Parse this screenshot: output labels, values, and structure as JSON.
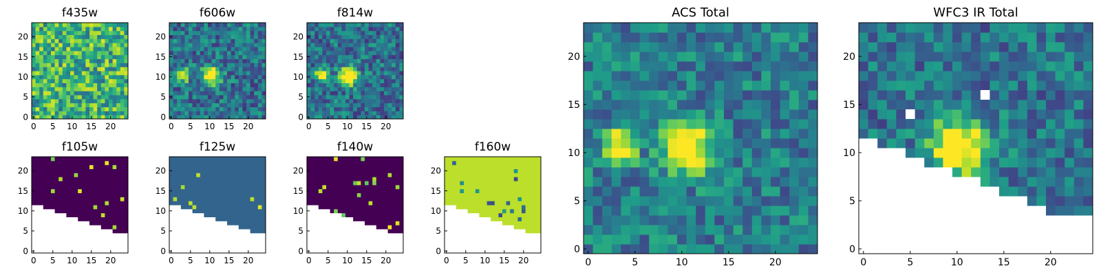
{
  "chart_data": [
    {
      "type": "heatmap",
      "title": "f435w",
      "mode": "noise",
      "xticks": [
        0,
        5,
        10,
        15,
        20
      ],
      "yticks": [
        0,
        5,
        10,
        15,
        20
      ],
      "xlim": [
        0,
        25
      ],
      "ylim": [
        0,
        24
      ],
      "colormap": "viridis"
    },
    {
      "type": "heatmap",
      "title": "f606w",
      "mode": "source",
      "xticks": [
        0,
        5,
        10,
        15,
        20
      ],
      "yticks": [
        0,
        5,
        10,
        15,
        20
      ],
      "xlim": [
        0,
        25
      ],
      "ylim": [
        0,
        24
      ],
      "colormap": "viridis"
    },
    {
      "type": "heatmap",
      "title": "f814w",
      "mode": "source",
      "xticks": [
        0,
        5,
        10,
        15,
        20
      ],
      "yticks": [
        0,
        5,
        10,
        15,
        20
      ],
      "xlim": [
        0,
        25
      ],
      "ylim": [
        0,
        24
      ],
      "colormap": "viridis"
    },
    {
      "type": "heatmap",
      "title": "f105w",
      "mode": "masked-dark",
      "xticks": [
        0,
        5,
        10,
        15,
        20
      ],
      "yticks": [
        0,
        5,
        10,
        15,
        20
      ],
      "xlim": [
        0,
        25
      ],
      "ylim": [
        0,
        24
      ],
      "colormap": "viridis"
    },
    {
      "type": "heatmap",
      "title": "f125w",
      "mode": "masked-teal",
      "xticks": [
        0,
        5,
        10,
        15,
        20
      ],
      "yticks": [
        0,
        5,
        10,
        15,
        20
      ],
      "xlim": [
        0,
        25
      ],
      "ylim": [
        0,
        24
      ],
      "colormap": "viridis"
    },
    {
      "type": "heatmap",
      "title": "f140w",
      "mode": "masked-dark",
      "xticks": [
        0,
        5,
        10,
        15,
        20
      ],
      "yticks": [
        0,
        5,
        10,
        15,
        20
      ],
      "xlim": [
        0,
        25
      ],
      "ylim": [
        0,
        24
      ],
      "colormap": "viridis"
    },
    {
      "type": "heatmap",
      "title": "f160w",
      "mode": "masked-yellow",
      "xticks": [
        0,
        5,
        10,
        15,
        20
      ],
      "yticks": [
        0,
        5,
        10,
        15,
        20
      ],
      "xlim": [
        0,
        25
      ],
      "ylim": [
        0,
        24
      ],
      "colormap": "viridis"
    },
    {
      "type": "heatmap",
      "title": "ACS Total",
      "mode": "acs-total",
      "xticks": [
        0,
        5,
        10,
        15,
        20
      ],
      "yticks": [
        0,
        5,
        10,
        15,
        20
      ],
      "xlim": [
        0,
        25
      ],
      "ylim": [
        0,
        24
      ],
      "colormap": "viridis"
    },
    {
      "type": "heatmap",
      "title": "WFC3 IR Total",
      "mode": "ir-total",
      "xticks": [
        0,
        5,
        10,
        15,
        20
      ],
      "yticks": [
        0,
        5,
        10,
        15,
        20
      ],
      "xlim": [
        0,
        25
      ],
      "ylim": [
        0,
        24
      ],
      "colormap": "viridis"
    }
  ]
}
